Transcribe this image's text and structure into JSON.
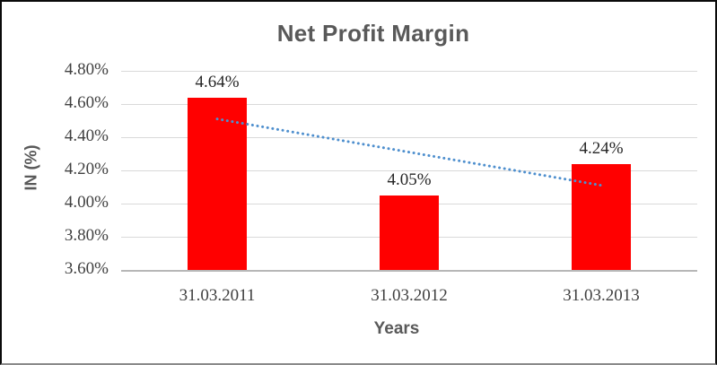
{
  "chart_data": {
    "type": "bar",
    "title": "Net Profit Margin",
    "xlabel": "Years",
    "ylabel": "IN (%)",
    "categories": [
      "31.03.2011",
      "31.03.2012",
      "31.03.2013"
    ],
    "series": [
      {
        "name": "Net Profit Margin",
        "values": [
          4.64,
          4.05,
          4.24
        ]
      }
    ],
    "data_labels": [
      "4.64%",
      "4.05%",
      "4.24%"
    ],
    "y_ticks": [
      "4.80%",
      "4.60%",
      "4.40%",
      "4.20%",
      "4.00%",
      "3.80%",
      "3.60%"
    ],
    "ylim": [
      3.6,
      4.8
    ],
    "y_tick_step": 0.2,
    "grid": true,
    "legend": "none",
    "bar_color": "#ff0000",
    "trendline": {
      "type": "linear",
      "style": "dotted",
      "color": "#4e8fce",
      "start_value": 4.51,
      "end_value": 4.11
    }
  }
}
